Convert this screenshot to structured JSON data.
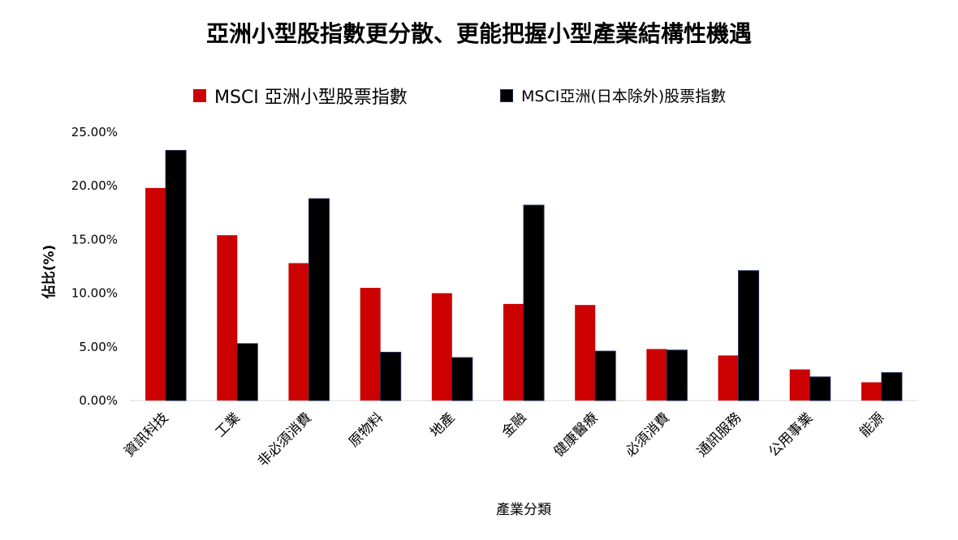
{
  "chart_data": {
    "type": "bar",
    "title": "亞洲小型股指數更分散、更能把握小型產業結構性機遇",
    "xlabel": "產業分類",
    "ylabel": "佔比(%)",
    "ylim": [
      0,
      25
    ],
    "yticks": [
      "0.00%",
      "5.00%",
      "10.00%",
      "15.00%",
      "20.00%",
      "25.00%"
    ],
    "grid": false,
    "legend_position": "top",
    "categories": [
      "資訊科技",
      "工業",
      "非必須消費",
      "原物料",
      "地產",
      "金融",
      "健康醫療",
      "必須消費",
      "通訊服務",
      "公用事業",
      "能源"
    ],
    "series": [
      {
        "name": "MSCI 亞洲小型股票指數",
        "color": "#cc0000",
        "values": [
          19.8,
          15.4,
          12.8,
          10.5,
          10.0,
          9.0,
          8.9,
          4.8,
          4.2,
          2.9,
          1.7
        ]
      },
      {
        "name": "MSCI亞洲(日本除外)股票指數",
        "color": "#000000",
        "values": [
          23.3,
          5.3,
          18.8,
          4.5,
          4.0,
          18.2,
          4.6,
          4.7,
          12.1,
          2.2,
          2.6
        ]
      }
    ]
  }
}
